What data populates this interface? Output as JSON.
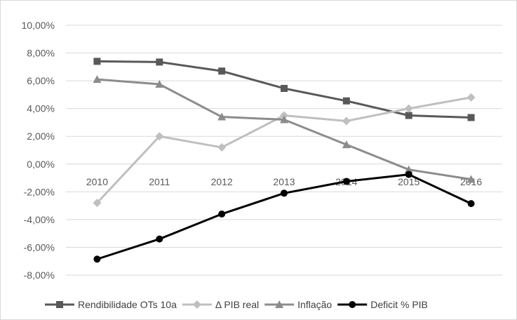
{
  "chart_data": {
    "type": "line",
    "title": "",
    "xlabel": "",
    "ylabel": "",
    "categories": [
      "2010",
      "2011",
      "2012",
      "2013",
      "2014",
      "2015",
      "2016"
    ],
    "ylim": [
      -8,
      10
    ],
    "y_ticks": [
      "10,00%",
      "8,00%",
      "6,00%",
      "4,00%",
      "2,00%",
      "0,00%",
      "-2,00%",
      "-4,00%",
      "-6,00%",
      "-8,00%"
    ],
    "y_tick_values": [
      10,
      8,
      6,
      4,
      2,
      0,
      -2,
      -4,
      -6,
      -8
    ],
    "grid": "horizontal",
    "legend_position": "bottom",
    "series": [
      {
        "name": "Rendibilidade OTs 10a",
        "color": "#595959",
        "marker": "square",
        "values": [
          7.4,
          7.35,
          6.7,
          5.45,
          4.55,
          3.5,
          3.35
        ]
      },
      {
        "name": "Δ PIB real",
        "color": "#bfbfbf",
        "marker": "diamond",
        "values": [
          -2.8,
          2.0,
          1.2,
          3.5,
          3.1,
          4.0,
          4.8
        ]
      },
      {
        "name": "Inflação",
        "color": "#8c8c8c",
        "marker": "triangle",
        "values": [
          6.1,
          5.75,
          3.4,
          3.2,
          1.4,
          -0.4,
          -1.1
        ]
      },
      {
        "name": "Deficit % PIB",
        "color": "#000000",
        "marker": "circle",
        "values": [
          -6.85,
          -5.4,
          -3.6,
          -2.1,
          -1.25,
          -0.75,
          -2.85
        ]
      }
    ]
  }
}
